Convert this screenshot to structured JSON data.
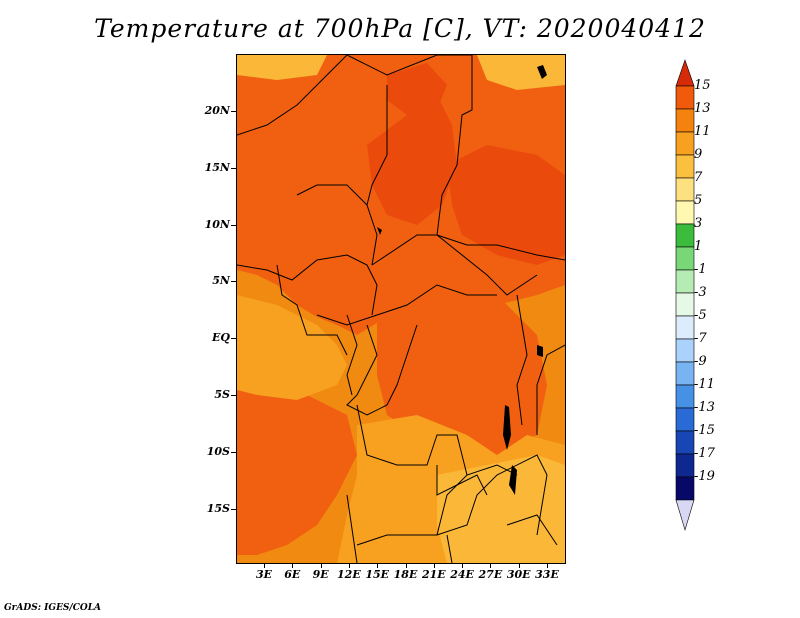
{
  "title": "Temperature at 700hPa [C], VT: 2020040412",
  "credit": "GrADS: IGES/COLA",
  "lat_labels": [
    "20N",
    "15N",
    "10N",
    "5N",
    "EQ",
    "5S",
    "10S",
    "15S"
  ],
  "lon_labels": [
    "3E",
    "6E",
    "9E",
    "12E",
    "15E",
    "18E",
    "21E",
    "24E",
    "27E",
    "30E",
    "33E"
  ],
  "colorbar": {
    "labels": [
      "15",
      "13",
      "11",
      "9",
      "7",
      "5",
      "3",
      "1",
      "-1",
      "-3",
      "-5",
      "-7",
      "-9",
      "-11",
      "-13",
      "-15",
      "-17",
      "-19"
    ],
    "colors": [
      "#e8320a",
      "#f05a0a",
      "#f5820f",
      "#f8a020",
      "#fbc040",
      "#fde080",
      "#fff8b0",
      "#3cbc3c",
      "#78d878",
      "#b4ecb4",
      "#e6f8e6",
      "#dcecfc",
      "#aad2fa",
      "#78b4f2",
      "#4690e6",
      "#2a6ad6",
      "#1846b4",
      "#0e2890",
      "#080868",
      "#d2d2f2"
    ],
    "top_arrow_color": "#d62a08",
    "bottom_arrow_color": "#d8d8f4"
  },
  "map_colors": {
    "base": "#f08a10",
    "warm": "#f06010",
    "hot": "#ea4a0c",
    "mild": "#f8a020",
    "cool": "#fbb838"
  }
}
